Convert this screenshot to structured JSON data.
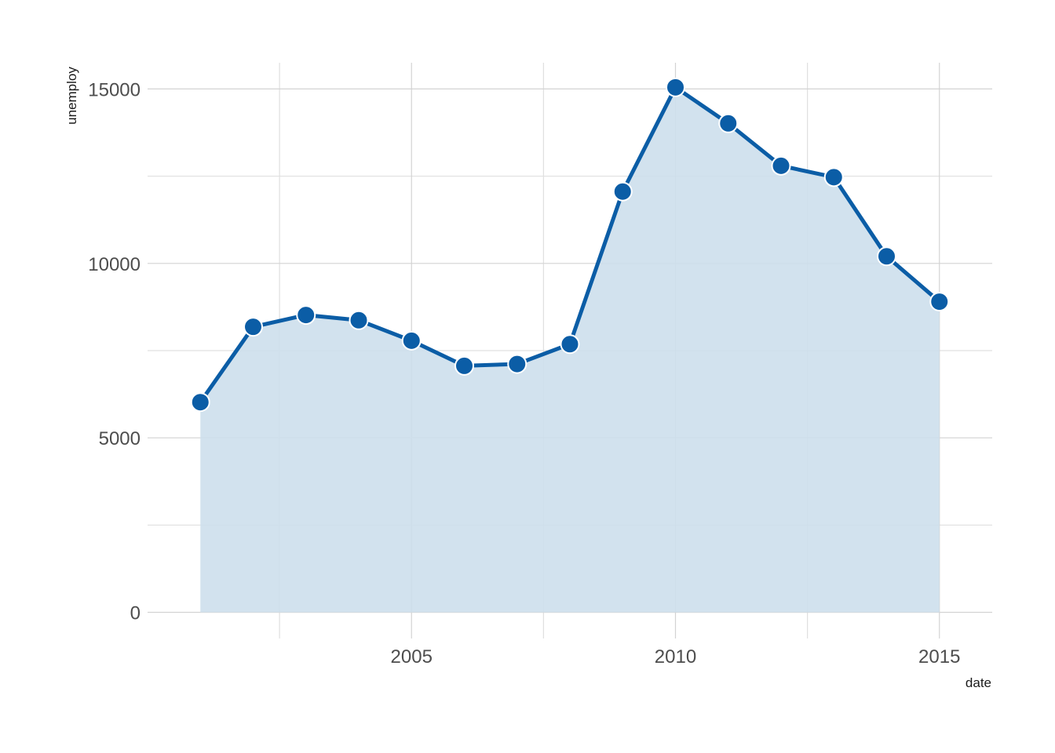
{
  "chart_data": {
    "type": "area",
    "xlabel": "date",
    "ylabel": "unemploy",
    "x": [
      2001,
      2002,
      2003,
      2004,
      2005,
      2006,
      2007,
      2008,
      2009,
      2010,
      2011,
      2012,
      2013,
      2014,
      2015
    ],
    "series": [
      {
        "values": [
          6023,
          8182,
          8520,
          8370,
          7784,
          7064,
          7116,
          7685,
          12058,
          15046,
          14013,
          12797,
          12471,
          10202,
          8903
        ]
      }
    ],
    "xlim": [
      2000.0,
      2016.0
    ],
    "ylim": [
      -750,
      15750
    ],
    "x_ticks": [
      2005,
      2010,
      2015
    ],
    "x_minor_ticks": [
      2002.5,
      2007.5,
      2012.5
    ],
    "y_ticks": [
      0,
      5000,
      10000,
      15000
    ],
    "y_minor_ticks": [
      2500,
      7500,
      12500
    ],
    "grid": true,
    "colors": {
      "line": "#0b5da6",
      "area": "#cddfec",
      "point_fill": "#0b5da6",
      "point_stroke": "#ffffff"
    }
  }
}
